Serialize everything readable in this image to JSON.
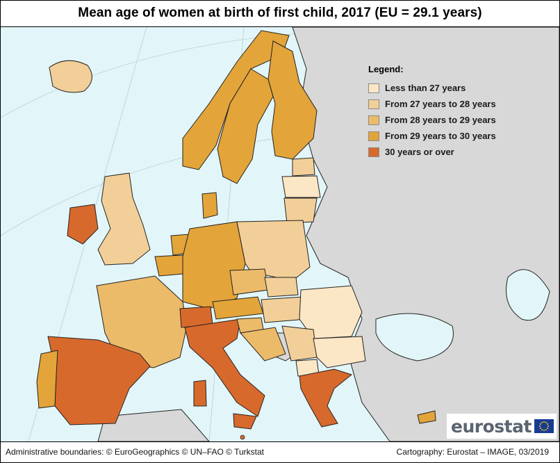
{
  "title": "Mean age of women at birth of first child, 2017 (EU = 29.1 years)",
  "legend": {
    "title": "Legend:",
    "items": [
      {
        "label": "Less than 27 years",
        "color": "#fbe6c6"
      },
      {
        "label": "From 27 years to 28 years",
        "color": "#f2cf98"
      },
      {
        "label": "From 28 years to 29 years",
        "color": "#ecbb6a"
      },
      {
        "label": "From 29 years to 30 years",
        "color": "#e3a43a"
      },
      {
        "label": "30 years or over",
        "color": "#d8692c"
      }
    ]
  },
  "colors": {
    "sea": "#e2f6f9",
    "non_reporting": "#d8d8d8",
    "border": "#222222"
  },
  "logo": {
    "text": "eurostat",
    "icon": "eu-flag-icon"
  },
  "footer": {
    "left": "Administrative boundaries: © EuroGeographics © UN–FAO © Turkstat",
    "right": "Cartography: Eurostat – IMAGE, 03/2019"
  }
}
